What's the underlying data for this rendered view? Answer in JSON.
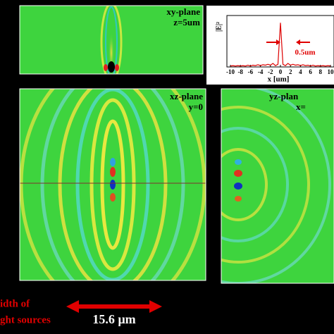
{
  "chart_data": {
    "type": "line",
    "x_label": "x [um]",
    "y_label": "|E|²",
    "annotation": "0.5um",
    "x": [
      -10,
      -9.5,
      -9,
      -8.5,
      -8,
      -7.5,
      -7,
      -6.5,
      -6,
      -5.5,
      -5,
      -4.5,
      -4,
      -3.5,
      -3,
      -2.5,
      -2,
      -1.5,
      -1,
      -0.5,
      0,
      0.5,
      1,
      1.5,
      2,
      2.5,
      3,
      3.5,
      4,
      4.5,
      5,
      5.5,
      6,
      6.5,
      7,
      7.5,
      8,
      8.5,
      9,
      9.5,
      10
    ],
    "series": [
      {
        "color": "#dd0000",
        "values": [
          0.02,
          0.03,
          0.02,
          0.03,
          0.02,
          0.03,
          0.02,
          0.04,
          0.02,
          0.04,
          0.03,
          0.05,
          0.03,
          0.05,
          0.04,
          0.06,
          0.04,
          0.08,
          0.03,
          0.06,
          1.0,
          0.06,
          0.03,
          0.08,
          0.04,
          0.06,
          0.04,
          0.05,
          0.03,
          0.05,
          0.03,
          0.04,
          0.02,
          0.04,
          0.02,
          0.03,
          0.02,
          0.03,
          0.02,
          0.03,
          0.02
        ]
      }
    ],
    "xlim": [
      -10,
      10
    ],
    "xticks": [
      -10,
      -8,
      -6,
      -4,
      -2,
      0,
      2,
      4,
      6,
      8,
      10
    ],
    "ylim": [
      0,
      1.1
    ]
  },
  "panels": [
    {
      "label": "xy-plane",
      "sublabel": "z=5um"
    },
    {
      "label": "xz-plane",
      "sublabel": "y=0"
    },
    {
      "label": "yz-plan",
      "sublabel": "x="
    }
  ],
  "footer": {
    "width_label_1": "idth of",
    "width_label_2": "ght sources",
    "width_value": "15.6 µm"
  }
}
